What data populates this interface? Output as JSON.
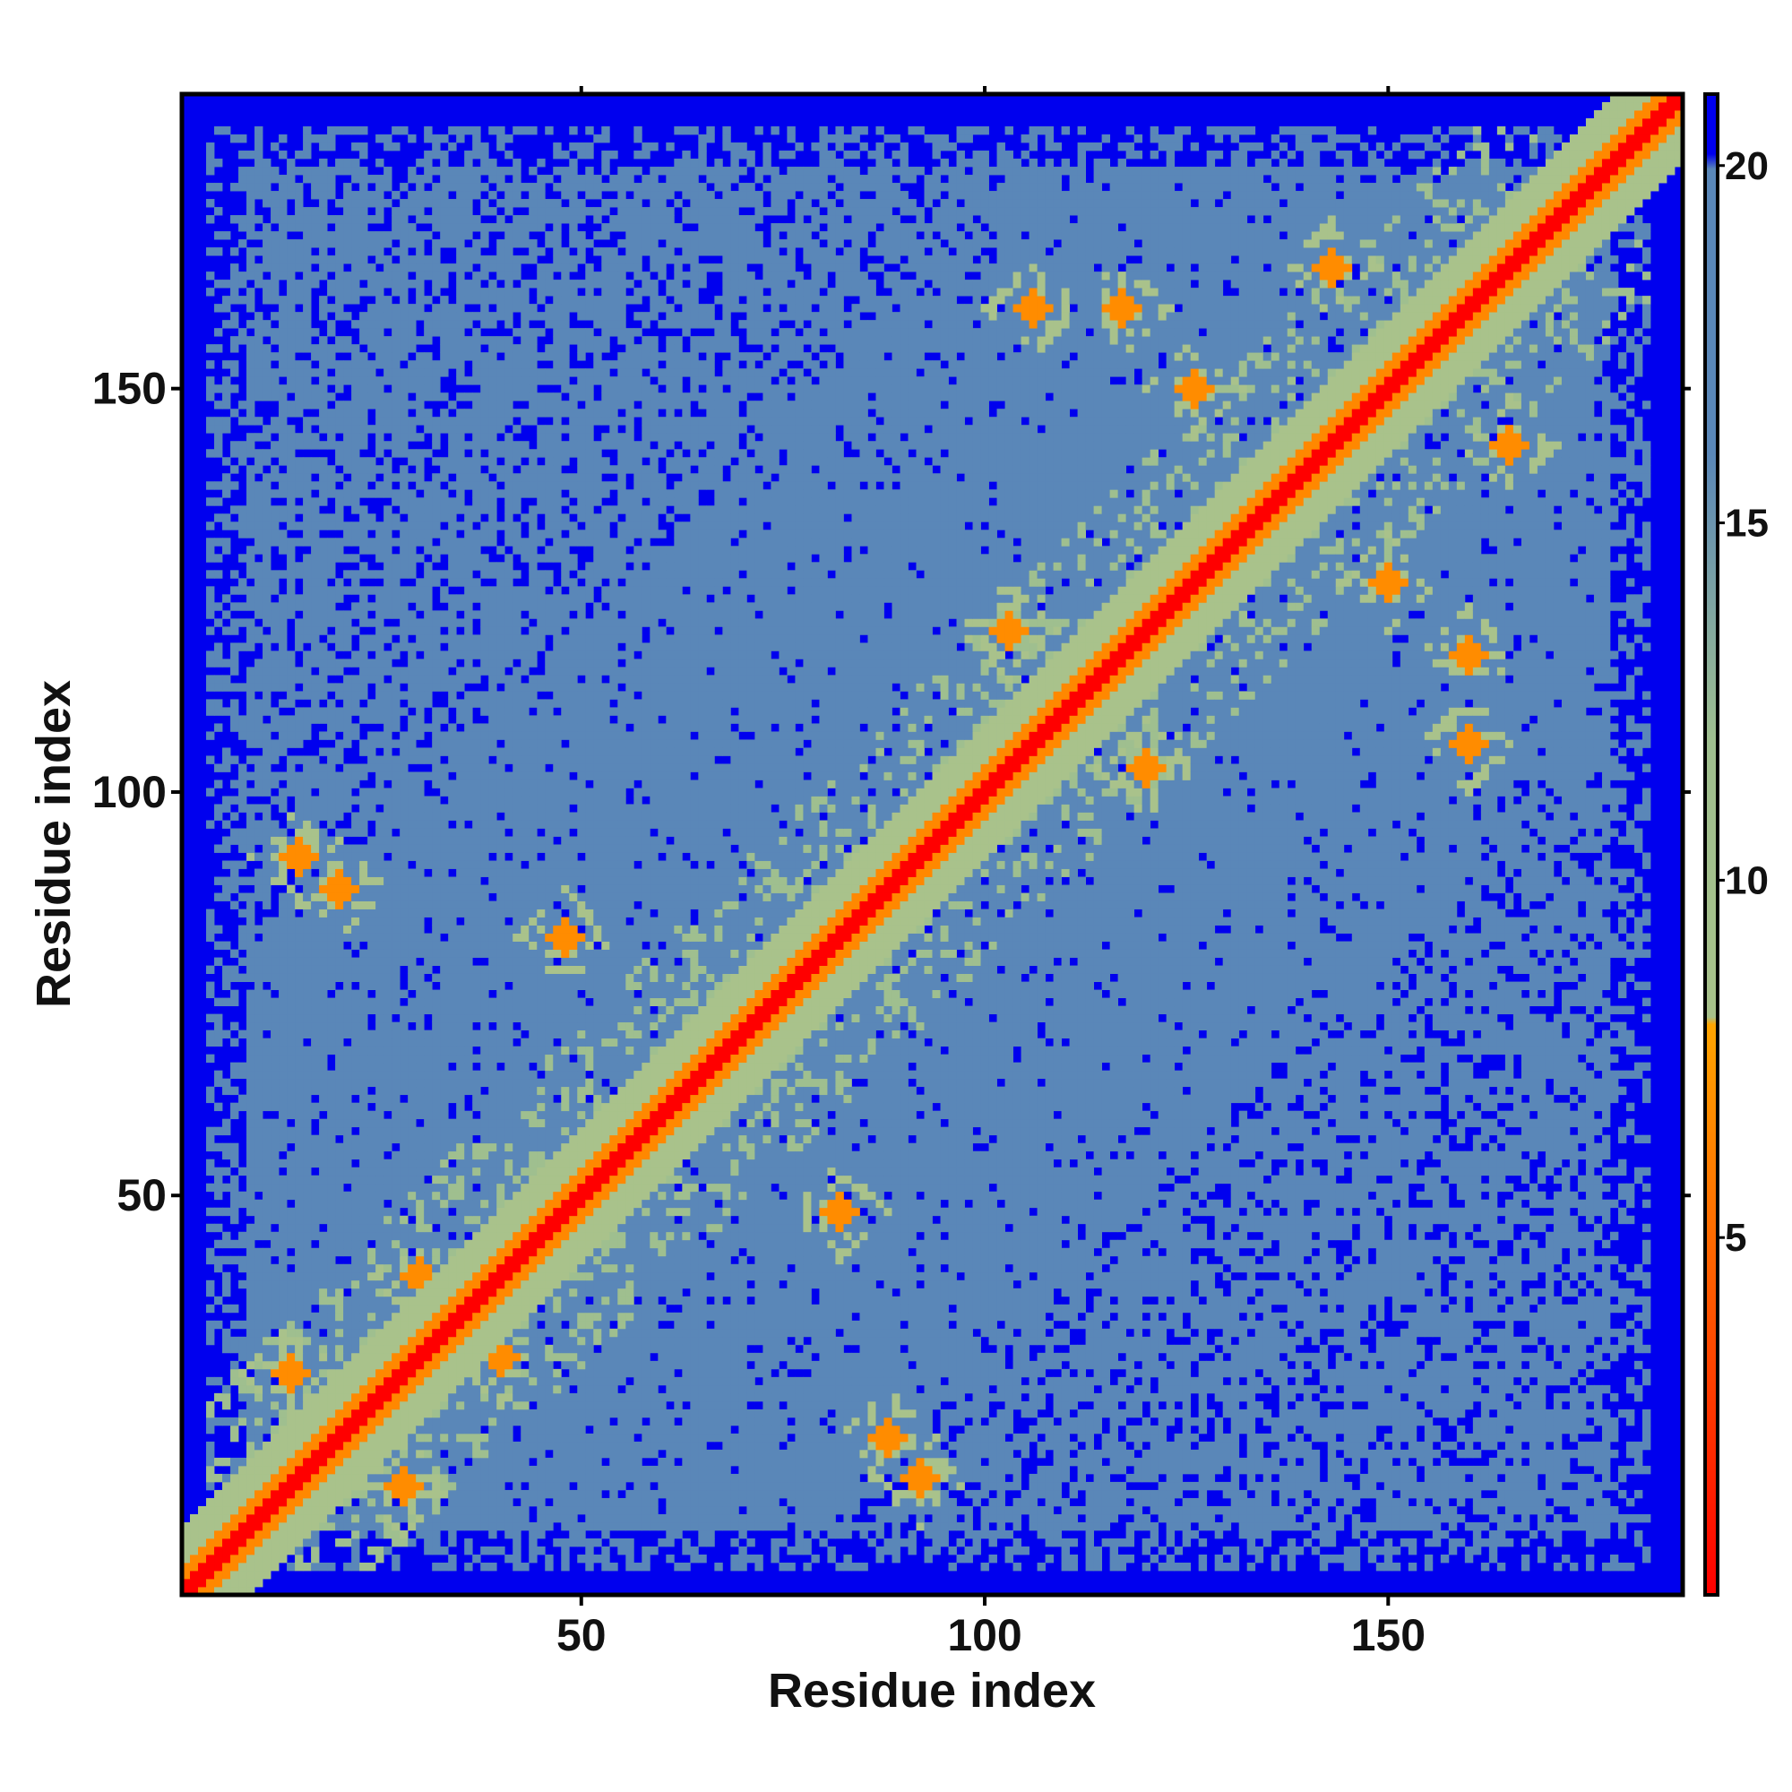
{
  "chart_data": {
    "type": "heatmap",
    "title": "",
    "xlabel": "Residue index",
    "ylabel": "Residue index",
    "xlim": [
      1,
      186
    ],
    "ylim": [
      1,
      186
    ],
    "x_ticks": [
      50,
      100,
      150
    ],
    "y_ticks": [
      50,
      100,
      150
    ],
    "x_tick_labels": [
      "50",
      "100",
      "150"
    ],
    "y_tick_labels": [
      "50",
      "100",
      "150"
    ],
    "n_residues": 186,
    "colorbar": {
      "range": [
        0,
        21
      ],
      "ticks": [
        5,
        10,
        15,
        20
      ],
      "tick_labels": [
        "5",
        "10",
        "15",
        "20"
      ],
      "colors": [
        {
          "value": 0,
          "color": "#ff0000"
        },
        {
          "value": 5,
          "color": "#ff6a00"
        },
        {
          "value": 8,
          "color": "#ffa500"
        },
        {
          "value": 12,
          "color": "#9fbf8f"
        },
        {
          "value": 16,
          "color": "#5a87b8"
        },
        {
          "value": 20,
          "color": "#5a87b8"
        },
        {
          "value": 21,
          "color": "#0000ee"
        }
      ]
    },
    "value_meaning": "pairwise residue distance; diagonal band low (red/orange), background high (blue)",
    "diagonal_band": {
      "contact_width_residues": 3,
      "near_width_residues": 8
    },
    "secondary_contacts": [
      {
        "i": 28,
        "j": 14
      },
      {
        "i": 40,
        "j": 30
      },
      {
        "i": 48,
        "j": 80
      },
      {
        "i": 82,
        "j": 48
      },
      {
        "i": 88,
        "j": 20
      },
      {
        "i": 92,
        "j": 15
      },
      {
        "i": 120,
        "j": 103
      },
      {
        "i": 117,
        "j": 160
      },
      {
        "i": 160,
        "j": 117
      },
      {
        "i": 106,
        "j": 160
      },
      {
        "i": 160,
        "j": 106
      },
      {
        "i": 150,
        "j": 126
      },
      {
        "i": 126,
        "j": 150
      },
      {
        "i": 143,
        "j": 165
      },
      {
        "i": 165,
        "j": 143
      }
    ]
  }
}
